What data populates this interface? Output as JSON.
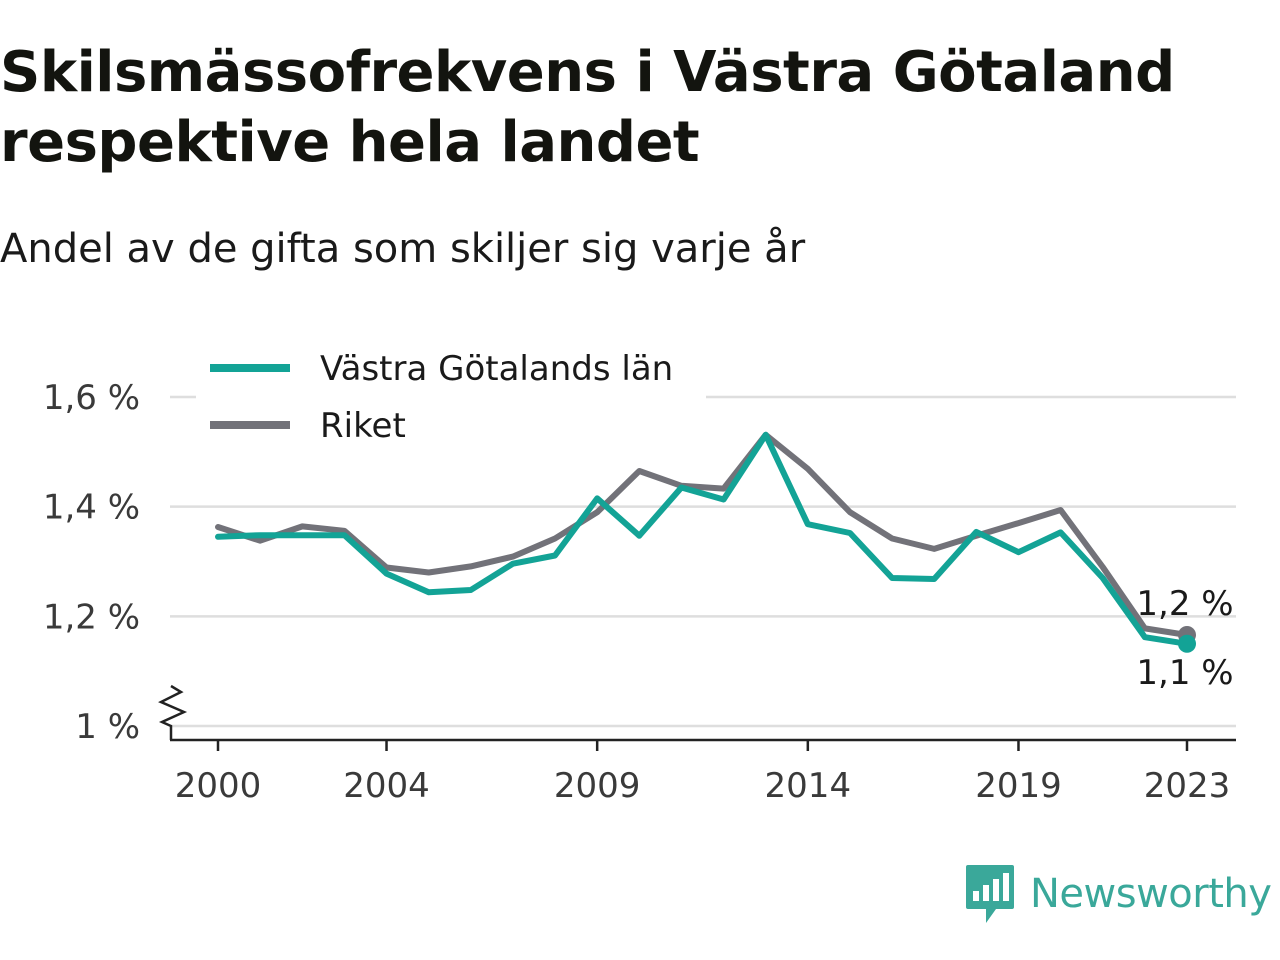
{
  "header": {
    "title": "Skilsmässofrekvens i Västra Götaland respektive hela landet",
    "subtitle": "Andel av de gifta som skiljer sig varje år"
  },
  "brand": {
    "name": "Newsworthy",
    "color": "#3aa89a",
    "icon": "newsworthy-chart-icon"
  },
  "chart_data": {
    "type": "line",
    "x": [
      2000,
      2001,
      2002,
      2003,
      2004,
      2005,
      2006,
      2007,
      2008,
      2009,
      2010,
      2011,
      2012,
      2013,
      2014,
      2015,
      2016,
      2017,
      2018,
      2019,
      2020,
      2021,
      2022,
      2023
    ],
    "x_ticks": [
      2000,
      2004,
      2009,
      2014,
      2019,
      2023
    ],
    "x_tick_labels": [
      "2000",
      "2004",
      "2009",
      "2014",
      "2019",
      "2023"
    ],
    "y_ticks": [
      1.0,
      1.2,
      1.4,
      1.6
    ],
    "y_tick_labels": [
      "1 %",
      "1,2 %",
      "1,4 %",
      "1,6 %"
    ],
    "ylim": [
      1.0,
      1.6
    ],
    "y_axis_break": true,
    "grid": true,
    "legend_position": "top-left",
    "series": [
      {
        "name": "Västra Götalands län",
        "color": "#13a396",
        "values": [
          1.345,
          1.348,
          1.348,
          1.348,
          1.278,
          1.244,
          1.248,
          1.296,
          1.311,
          1.415,
          1.347,
          1.435,
          1.413,
          1.531,
          1.368,
          1.352,
          1.27,
          1.268,
          1.354,
          1.317,
          1.353,
          1.27,
          1.162,
          1.15
        ],
        "end_label": "1,1 %"
      },
      {
        "name": "Riket",
        "color": "#727279",
        "values": [
          1.363,
          1.338,
          1.364,
          1.356,
          1.289,
          1.28,
          1.291,
          1.309,
          1.342,
          1.39,
          1.465,
          1.438,
          1.433,
          1.531,
          1.469,
          1.39,
          1.342,
          1.323,
          1.347,
          1.37,
          1.394,
          1.29,
          1.178,
          1.166
        ],
        "end_label": "1,2 %"
      }
    ]
  }
}
